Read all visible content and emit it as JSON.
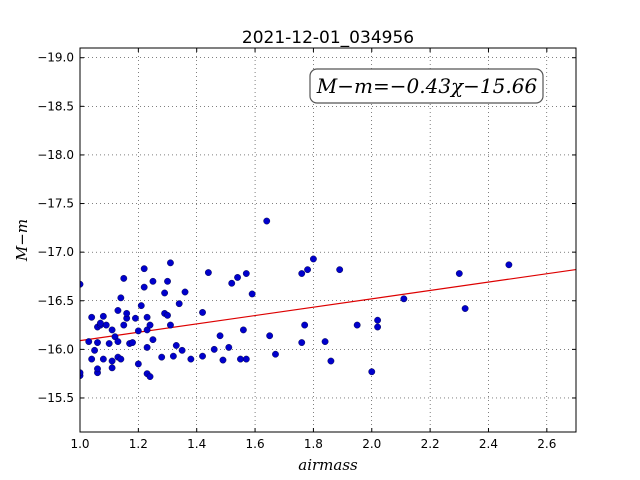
{
  "chart_data": {
    "type": "scatter",
    "title": "2021-12-01_034956",
    "xlabel": "airmass",
    "ylabel": "M−m",
    "xlim": [
      1.0,
      2.7
    ],
    "ylim": [
      -19.1,
      -15.15
    ],
    "y_inverted": true,
    "grid": true,
    "grid_style": "dotted",
    "xticks": [
      1.0,
      1.2,
      1.4,
      1.6,
      1.8,
      2.0,
      2.2,
      2.4,
      2.6
    ],
    "xtick_labels": [
      "1.0",
      "1.2",
      "1.4",
      "1.6",
      "1.8",
      "2.0",
      "2.2",
      "2.4",
      "2.6"
    ],
    "yticks": [
      -15.5,
      -16.0,
      -16.5,
      -17.0,
      -17.5,
      -18.0,
      -18.5,
      -19.0
    ],
    "ytick_labels": [
      "−15.5",
      "−16.0",
      "−16.5",
      "−17.0",
      "−17.5",
      "−18.0",
      "−18.5",
      "−19.0"
    ],
    "annotation": "M−m=−0.43χ−15.66",
    "annotation_position": "top-right",
    "colors": {
      "points": "#0000cc",
      "fit_line": "#dd0000"
    },
    "fit": {
      "slope": -0.43,
      "intercept": -15.66
    },
    "points": [
      [
        1.0,
        -15.73
      ],
      [
        1.0,
        -15.76
      ],
      [
        1.0,
        -16.67
      ],
      [
        1.03,
        -16.08
      ],
      [
        1.04,
        -15.9
      ],
      [
        1.04,
        -16.33
      ],
      [
        1.05,
        -15.99
      ],
      [
        1.06,
        -15.76
      ],
      [
        1.06,
        -15.8
      ],
      [
        1.06,
        -16.07
      ],
      [
        1.06,
        -16.23
      ],
      [
        1.07,
        -16.25
      ],
      [
        1.07,
        -16.27
      ],
      [
        1.08,
        -15.9
      ],
      [
        1.08,
        -16.34
      ],
      [
        1.09,
        -16.25
      ],
      [
        1.1,
        -16.06
      ],
      [
        1.11,
        -15.81
      ],
      [
        1.11,
        -15.88
      ],
      [
        1.11,
        -16.2
      ],
      [
        1.12,
        -16.13
      ],
      [
        1.13,
        -15.92
      ],
      [
        1.13,
        -16.08
      ],
      [
        1.13,
        -16.4
      ],
      [
        1.14,
        -15.9
      ],
      [
        1.14,
        -16.53
      ],
      [
        1.15,
        -16.25
      ],
      [
        1.15,
        -16.73
      ],
      [
        1.16,
        -16.32
      ],
      [
        1.16,
        -16.37
      ],
      [
        1.17,
        -16.06
      ],
      [
        1.18,
        -16.07
      ],
      [
        1.19,
        -16.32
      ],
      [
        1.2,
        -15.85
      ],
      [
        1.2,
        -16.19
      ],
      [
        1.21,
        -16.45
      ],
      [
        1.22,
        -16.64
      ],
      [
        1.22,
        -16.83
      ],
      [
        1.23,
        -15.75
      ],
      [
        1.23,
        -16.02
      ],
      [
        1.23,
        -16.2
      ],
      [
        1.23,
        -16.33
      ],
      [
        1.24,
        -15.72
      ],
      [
        1.24,
        -16.25
      ],
      [
        1.25,
        -16.1
      ],
      [
        1.25,
        -16.7
      ],
      [
        1.28,
        -15.92
      ],
      [
        1.29,
        -16.37
      ],
      [
        1.29,
        -16.58
      ],
      [
        1.3,
        -16.35
      ],
      [
        1.3,
        -16.7
      ],
      [
        1.31,
        -16.25
      ],
      [
        1.31,
        -16.89
      ],
      [
        1.32,
        -15.93
      ],
      [
        1.33,
        -16.04
      ],
      [
        1.34,
        -16.47
      ],
      [
        1.35,
        -15.99
      ],
      [
        1.36,
        -16.59
      ],
      [
        1.38,
        -15.9
      ],
      [
        1.42,
        -15.93
      ],
      [
        1.42,
        -16.38
      ],
      [
        1.44,
        -16.79
      ],
      [
        1.46,
        -16.0
      ],
      [
        1.48,
        -16.14
      ],
      [
        1.49,
        -15.89
      ],
      [
        1.51,
        -16.02
      ],
      [
        1.52,
        -16.68
      ],
      [
        1.54,
        -16.74
      ],
      [
        1.55,
        -15.9
      ],
      [
        1.56,
        -16.2
      ],
      [
        1.57,
        -15.9
      ],
      [
        1.57,
        -16.78
      ],
      [
        1.59,
        -16.57
      ],
      [
        1.64,
        -17.32
      ],
      [
        1.65,
        -16.14
      ],
      [
        1.67,
        -15.95
      ],
      [
        1.76,
        -16.07
      ],
      [
        1.76,
        -16.78
      ],
      [
        1.77,
        -16.25
      ],
      [
        1.78,
        -16.82
      ],
      [
        1.8,
        -16.93
      ],
      [
        1.84,
        -16.08
      ],
      [
        1.86,
        -15.88
      ],
      [
        1.89,
        -16.82
      ],
      [
        1.95,
        -16.25
      ],
      [
        2.0,
        -15.77
      ],
      [
        2.02,
        -16.23
      ],
      [
        2.02,
        -16.3
      ],
      [
        2.11,
        -16.52
      ],
      [
        2.3,
        -16.78
      ],
      [
        2.32,
        -16.42
      ],
      [
        2.47,
        -16.87
      ]
    ]
  }
}
